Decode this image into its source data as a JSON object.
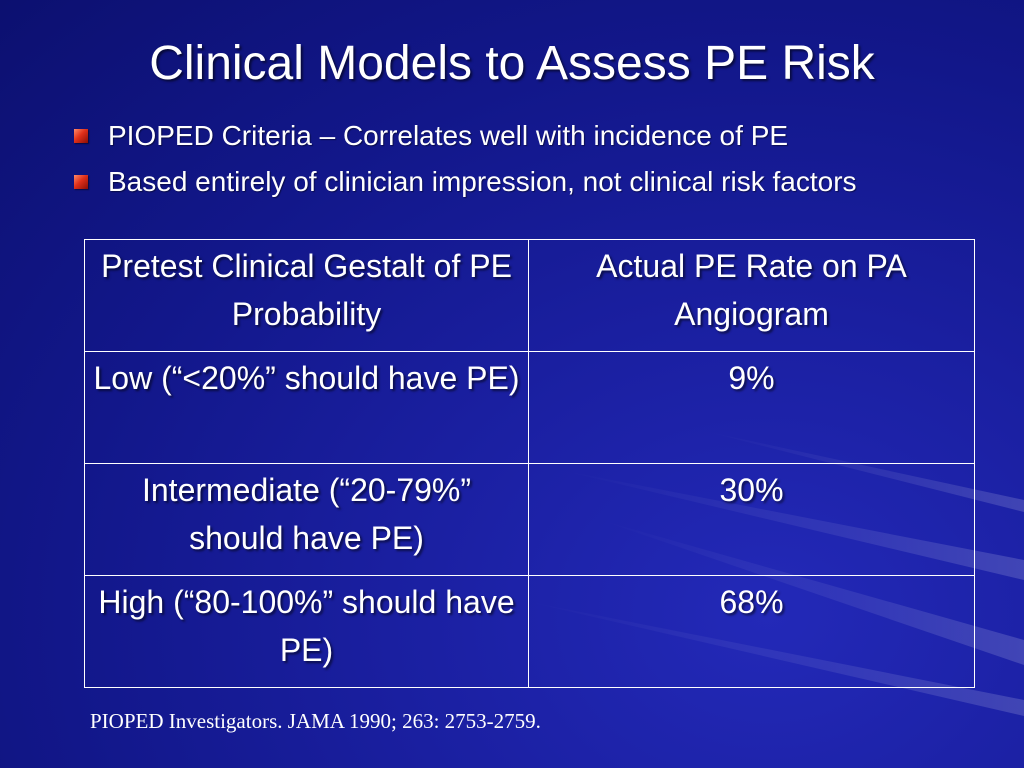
{
  "slide": {
    "title": "Clinical Models to Assess PE Risk",
    "bullets": [
      "PIOPED Criteria – Correlates well with incidence of PE",
      "Based entirely of clinician impression, not clinical risk factors"
    ],
    "table": {
      "headers": [
        "Pretest Clinical Gestalt of PE Probability",
        "Actual PE Rate on PA Angiogram"
      ],
      "rows": [
        [
          "Low (“<20%” should have PE)",
          "9%"
        ],
        [
          "Intermediate (“20-79%” should have PE)",
          "30%"
        ],
        [
          "High (“80-100%” should have PE)",
          "68%"
        ]
      ]
    },
    "citation": "PIOPED Investigators. JAMA 1990; 263: 2753-2759."
  },
  "colors": {
    "background": "#1a1fa0",
    "text": "#ffffff",
    "bullet_marker": "#e0301a"
  }
}
